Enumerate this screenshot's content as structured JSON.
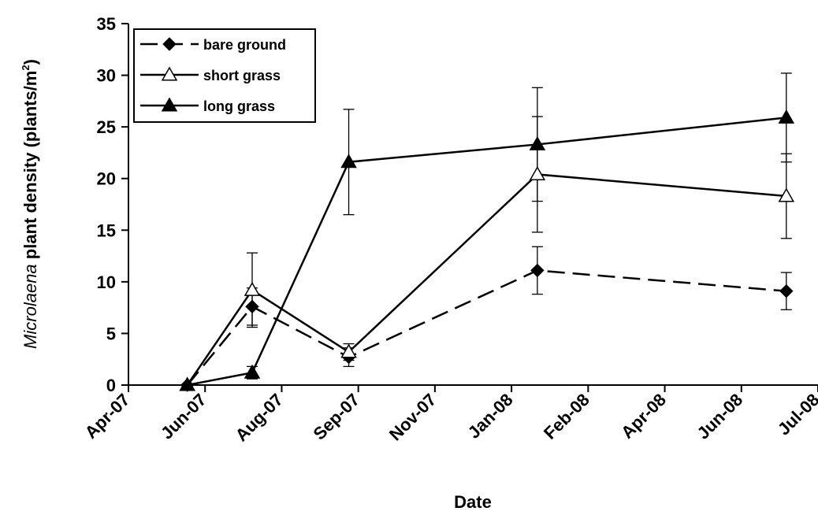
{
  "chart_data": {
    "type": "line",
    "xlabel": "Date",
    "ylabel": {
      "italic": "Microlaena",
      "rest": " plant density (plants/m",
      "sup": "2",
      "close": ")"
    },
    "ylim": [
      0,
      35
    ],
    "yticks": [
      0,
      5,
      10,
      15,
      20,
      25,
      30,
      35
    ],
    "xlim": [
      "2007-04-01",
      "2008-07-01"
    ],
    "xtick_labels": [
      "Apr-07",
      "Jun-07",
      "Aug-07",
      "Sep-07",
      "Nov-07",
      "Jan-08",
      "Feb-08",
      "Apr-08",
      "Jun-08",
      "Jul-08"
    ],
    "x": [
      "2007-05-10",
      "2007-06-22",
      "2007-08-25",
      "2007-12-28",
      "2008-06-10"
    ],
    "legend_position": "top-left",
    "series": [
      {
        "name": "bare ground",
        "marker": "diamond-filled",
        "line": "dashed",
        "values": [
          0,
          7.6,
          2.7,
          11.1,
          9.1
        ],
        "err": [
          0,
          1.8,
          0.9,
          2.3,
          1.8
        ]
      },
      {
        "name": "short grass",
        "marker": "triangle-open",
        "line": "solid",
        "values": [
          0,
          9.2,
          3.2,
          20.4,
          18.3
        ],
        "err": [
          0,
          3.6,
          0.8,
          5.6,
          4.1
        ]
      },
      {
        "name": "long grass",
        "marker": "triangle-filled",
        "line": "solid",
        "values": [
          0,
          1.2,
          21.6,
          23.3,
          25.9
        ],
        "err": [
          0,
          0.6,
          5.1,
          5.5,
          4.3
        ]
      }
    ]
  }
}
